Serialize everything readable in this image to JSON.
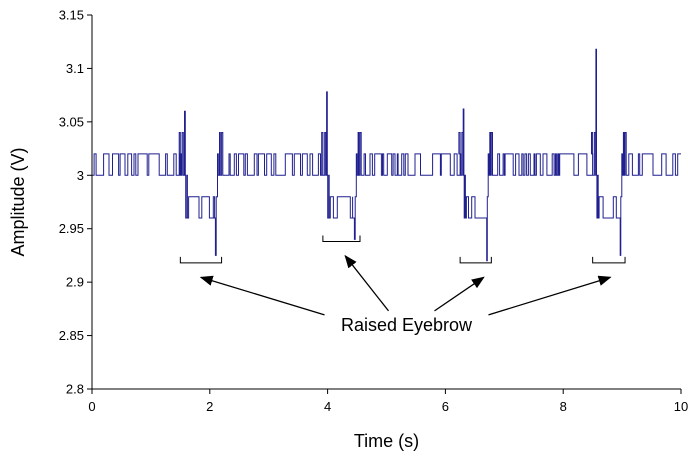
{
  "chart_data": {
    "type": "line",
    "xlabel": "Time (s)",
    "ylabel": "Amplitude (V)",
    "xlim": [
      0,
      10
    ],
    "ylim": [
      2.8,
      3.15
    ],
    "x_ticks": [
      "0",
      "2",
      "4",
      "6",
      "8",
      "10"
    ],
    "y_ticks": [
      "2.8",
      "2.85",
      "2.9",
      "2.95",
      "3",
      "3.05",
      "3.1",
      "3.15"
    ],
    "grid": false,
    "legend": "none",
    "series_color": "#1f1f8f",
    "baseline_level": 3.0,
    "noise_high": 3.02,
    "events": [
      {
        "start": 1.5,
        "end": 2.2,
        "peak": 3.06,
        "trough": 2.925,
        "mid": 2.98
      },
      {
        "start": 3.92,
        "end": 4.55,
        "peak": 3.078,
        "trough": 2.94,
        "mid": 2.98
      },
      {
        "start": 6.25,
        "end": 6.78,
        "peak": 3.062,
        "trough": 2.92,
        "mid": 2.98
      },
      {
        "start": 8.5,
        "end": 9.05,
        "peak": 3.118,
        "trough": 2.925,
        "mid": 2.98
      }
    ],
    "annotation": {
      "text": "Raised Eyebrow",
      "brackets": [
        {
          "x0": 1.5,
          "x1": 2.2,
          "y": 2.918
        },
        {
          "x0": 3.92,
          "x1": 4.55,
          "y": 2.938
        },
        {
          "x0": 6.25,
          "x1": 6.78,
          "y": 2.918
        },
        {
          "x0": 8.5,
          "x1": 9.05,
          "y": 2.918
        }
      ],
      "arrow_targets": [
        {
          "x": 1.85,
          "y": 2.912
        },
        {
          "x": 4.3,
          "y": 2.932
        },
        {
          "x": 6.65,
          "y": 2.912
        },
        {
          "x": 8.8,
          "y": 2.912
        }
      ],
      "text_anchor": {
        "x": 5.0,
        "y": 2.86
      }
    }
  }
}
